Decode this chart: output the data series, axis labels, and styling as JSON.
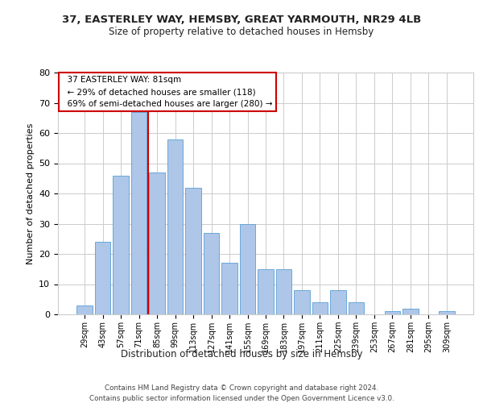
{
  "title1": "37, EASTERLEY WAY, HEMSBY, GREAT YARMOUTH, NR29 4LB",
  "title2": "Size of property relative to detached houses in Hemsby",
  "xlabel": "Distribution of detached houses by size in Hemsby",
  "ylabel": "Number of detached properties",
  "footer": "Contains HM Land Registry data © Crown copyright and database right 2024.\nContains public sector information licensed under the Open Government Licence v3.0.",
  "annotation_title": "37 EASTERLEY WAY: 81sqm",
  "annotation_line1": "← 29% of detached houses are smaller (118)",
  "annotation_line2": "69% of semi-detached houses are larger (280) →",
  "bar_categories": [
    "29sqm",
    "43sqm",
    "57sqm",
    "71sqm",
    "85sqm",
    "99sqm",
    "113sqm",
    "127sqm",
    "141sqm",
    "155sqm",
    "169sqm",
    "183sqm",
    "197sqm",
    "211sqm",
    "225sqm",
    "239sqm",
    "253sqm",
    "267sqm",
    "281sqm",
    "295sqm",
    "309sqm"
  ],
  "bar_values": [
    3,
    24,
    46,
    67,
    47,
    58,
    42,
    27,
    17,
    30,
    15,
    15,
    8,
    4,
    8,
    4,
    0,
    1,
    2,
    0,
    1
  ],
  "bar_color": "#aec6e8",
  "bar_edge_color": "#5a9fd4",
  "vline_x": 3.5,
  "vline_color": "#cc0000",
  "annotation_box_color": "#ffffff",
  "annotation_box_edge_color": "#cc0000",
  "grid_color": "#cccccc",
  "background_color": "#ffffff",
  "ylim": [
    0,
    80
  ],
  "yticks": [
    0,
    10,
    20,
    30,
    40,
    50,
    60,
    70,
    80
  ]
}
